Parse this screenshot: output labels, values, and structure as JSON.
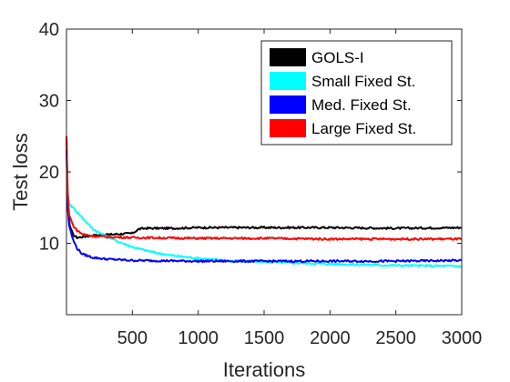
{
  "chart_data": {
    "type": "line",
    "title": "",
    "xlabel": "Iterations",
    "ylabel": "Test loss",
    "xlim": [
      0,
      3000
    ],
    "ylim": [
      0,
      40
    ],
    "xticks": [
      500,
      1000,
      1500,
      2000,
      2500,
      3000
    ],
    "yticks": [
      10,
      20,
      30,
      40
    ],
    "grid": false,
    "legend_position": "top-right",
    "series": [
      {
        "name": "GOLS-I",
        "color": "#000000",
        "x": [
          0,
          10,
          25,
          50,
          80,
          120,
          200,
          300,
          400,
          500,
          550,
          600,
          800,
          1000,
          1500,
          2000,
          2500,
          3000
        ],
        "y": [
          25,
          15,
          12.5,
          11.2,
          10.8,
          10.9,
          11.1,
          11.2,
          11.3,
          11.4,
          12.0,
          12.1,
          12.1,
          12.2,
          12.2,
          12.2,
          12.1,
          12.2
        ]
      },
      {
        "name": "Small Fixed St.",
        "color": "#00ffff",
        "x": [
          0,
          10,
          20,
          50,
          100,
          150,
          200,
          300,
          400,
          500,
          600,
          700,
          800,
          1000,
          1200,
          1500,
          2000,
          2500,
          3000
        ],
        "y": [
          22,
          17,
          15.5,
          15.0,
          14.0,
          13.0,
          12.0,
          11.0,
          10.2,
          9.5,
          9.0,
          8.6,
          8.3,
          7.9,
          7.6,
          7.4,
          7.1,
          6.9,
          6.8
        ]
      },
      {
        "name": "Med. Fixed St.",
        "color": "#0000ff",
        "x": [
          0,
          10,
          20,
          50,
          80,
          120,
          200,
          300,
          500,
          1000,
          1500,
          2000,
          2500,
          3000
        ],
        "y": [
          23,
          15,
          12.5,
          10.5,
          9.3,
          8.5,
          8.0,
          7.8,
          7.6,
          7.5,
          7.5,
          7.5,
          7.5,
          7.6
        ]
      },
      {
        "name": "Large Fixed St.",
        "color": "#ff0000",
        "x": [
          0,
          10,
          20,
          50,
          80,
          120,
          200,
          300,
          500,
          1000,
          1500,
          2000,
          2500,
          3000
        ],
        "y": [
          25,
          17,
          14,
          12.5,
          11.8,
          11.3,
          11.0,
          10.9,
          10.8,
          10.7,
          10.7,
          10.6,
          10.6,
          10.6
        ]
      }
    ]
  }
}
